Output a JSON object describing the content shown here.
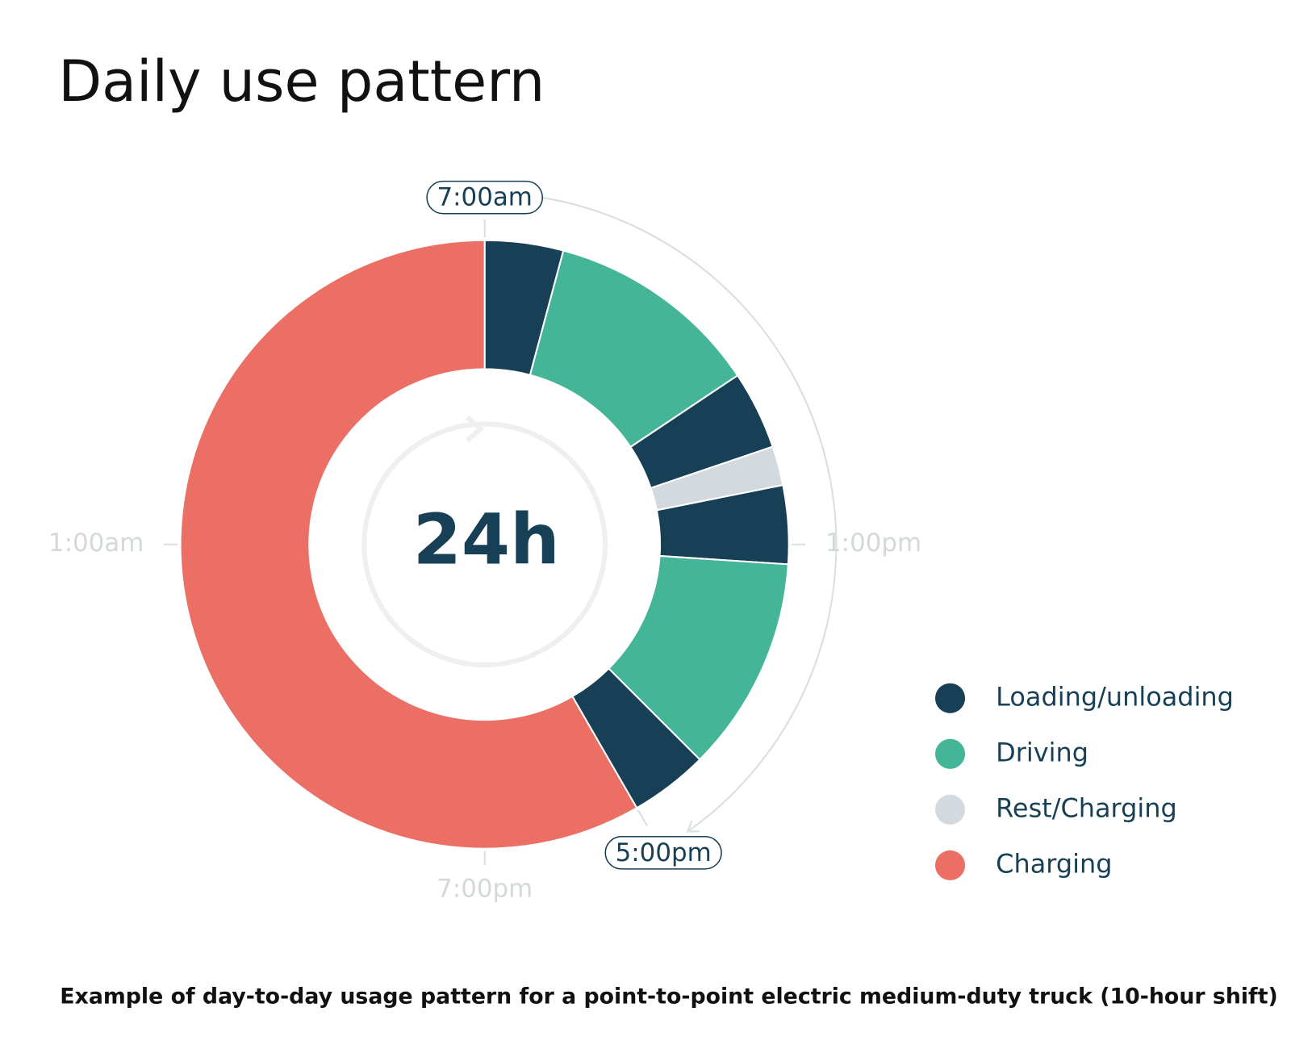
{
  "chart_data": {
    "type": "donut",
    "title": "Daily use pattern",
    "caption": "Example of day-to-day usage pattern for a point-to-point electric medium-duty truck (10-hour shift)",
    "center_label": "24h",
    "values": [
      1,
      2.75,
      1,
      0.5,
      1,
      2.75,
      1,
      14
    ],
    "colors": [
      "#173f55",
      "#45b597",
      "#173f55",
      "#d3dadf",
      "#173f55",
      "#45b597",
      "#173f55",
      "#ec6f66"
    ],
    "legend": [
      {
        "name": "Loading/unloading",
        "color": "#173f55"
      },
      {
        "name": "Driving",
        "color": "#45b597"
      },
      {
        "name": "Rest/Charging",
        "color": "#d3dadf"
      },
      {
        "name": "Charging",
        "color": "#ec6f66"
      }
    ],
    "ticks": [
      {
        "value": 0,
        "label": "7:00am"
      },
      {
        "value": 6,
        "label": "1:00pm"
      },
      {
        "value": 10,
        "label": "5:00pm"
      },
      {
        "value": 12,
        "label": "7:00pm"
      },
      {
        "value": 18,
        "label": "1:00am"
      }
    ],
    "full_circle": 24,
    "highlight_range": [
      0,
      10
    ]
  }
}
